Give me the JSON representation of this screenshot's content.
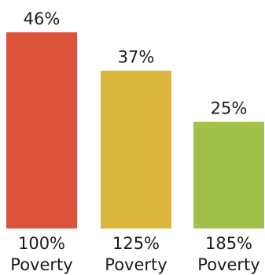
{
  "chart_data": {
    "type": "bar",
    "categories": [
      [
        "100%",
        "Poverty"
      ],
      [
        "125%",
        "Poverty"
      ],
      [
        "185%",
        "Poverty"
      ]
    ],
    "values": [
      46,
      37,
      25
    ],
    "labels": [
      "46%",
      "37%",
      "25%"
    ],
    "colors": [
      "#dd523b",
      "#dab63d",
      "#a3c14a"
    ],
    "title": "",
    "xlabel": "",
    "ylabel": "",
    "ylim": [
      0,
      46
    ],
    "grid": false,
    "legend": "none"
  }
}
